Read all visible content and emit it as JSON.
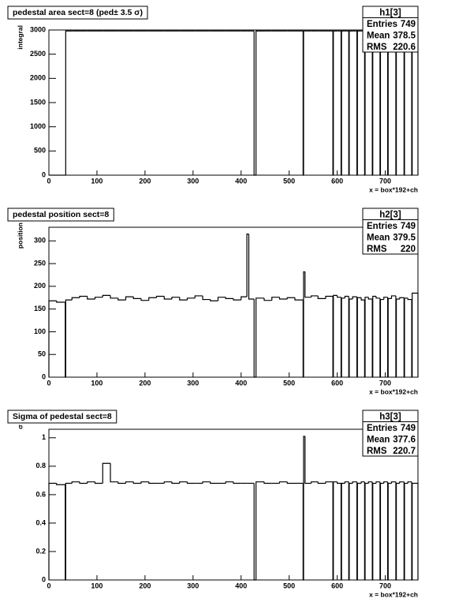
{
  "chart_data": [
    {
      "type": "histogram",
      "title": "pedestal area sect=8 (ped± 3.5 σ)",
      "xlabel": "x = box*192+ch",
      "ylabel": "integral",
      "color": "#000000",
      "stats": {
        "name": "h1[3]",
        "rows": [
          {
            "label": "Entries",
            "value": 749
          },
          {
            "label": "Mean",
            "value": 378.5
          },
          {
            "label": "RMS",
            "value": 220.6
          }
        ]
      },
      "bins": [
        0,
        16,
        34,
        35,
        48,
        64,
        80,
        96,
        112,
        128,
        144,
        160,
        176,
        192,
        208,
        224,
        240,
        256,
        272,
        288,
        304,
        320,
        336,
        352,
        368,
        384,
        400,
        412,
        416,
        427,
        431,
        448,
        464,
        480,
        496,
        512,
        529,
        530,
        533,
        546,
        560,
        576,
        591,
        592,
        600,
        608,
        609,
        616,
        624,
        625,
        632,
        641,
        642,
        650,
        657,
        658,
        665,
        673,
        674,
        681,
        689,
        690,
        697,
        705,
        706,
        713,
        722,
        723,
        730,
        739,
        740,
        747,
        755,
        756,
        768
      ],
      "values": [
        0,
        0,
        0,
        2980,
        2980,
        2980,
        2980,
        2980,
        2980,
        2980,
        2980,
        2980,
        2980,
        2980,
        2980,
        2980,
        2980,
        2980,
        2980,
        2980,
        2980,
        2980,
        2980,
        2980,
        2980,
        2980,
        2980,
        2980,
        2980,
        0,
        2980,
        2980,
        2980,
        2980,
        2980,
        2980,
        0,
        2980,
        2980,
        2980,
        2980,
        2980,
        0,
        2980,
        2980,
        0,
        2980,
        2980,
        0,
        2980,
        2980,
        0,
        2980,
        2980,
        0,
        2980,
        2980,
        0,
        2980,
        2980,
        0,
        2980,
        2980,
        0,
        2980,
        2980,
        0,
        2980,
        2980,
        0,
        2980,
        2980,
        0,
        2980
      ],
      "xlim": [
        0,
        768
      ],
      "ylim": [
        0,
        3000
      ],
      "xticks": [
        0,
        100,
        200,
        300,
        400,
        500,
        600,
        700
      ],
      "yticks": [
        0,
        500,
        1000,
        1500,
        2000,
        2500,
        3000
      ]
    },
    {
      "type": "histogram",
      "title": "pedestal position sect=8",
      "xlabel": "x = box*192+ch",
      "ylabel": "position",
      "color": "#000000",
      "stats": {
        "name": "h2[3]",
        "rows": [
          {
            "label": "Entries",
            "value": 749
          },
          {
            "label": "Mean",
            "value": 379.5
          },
          {
            "label": "RMS",
            "value": 220
          }
        ]
      },
      "bins": [
        0,
        16,
        34,
        35,
        48,
        64,
        80,
        96,
        112,
        128,
        144,
        160,
        176,
        192,
        208,
        224,
        240,
        256,
        272,
        288,
        304,
        320,
        336,
        352,
        368,
        384,
        400,
        412,
        416,
        427,
        431,
        448,
        464,
        480,
        496,
        512,
        529,
        530,
        533,
        546,
        560,
        576,
        591,
        592,
        600,
        608,
        609,
        616,
        624,
        625,
        632,
        641,
        642,
        650,
        657,
        658,
        665,
        673,
        674,
        681,
        689,
        690,
        697,
        705,
        706,
        713,
        722,
        723,
        730,
        739,
        740,
        747,
        755,
        756,
        768
      ],
      "values": [
        168,
        165,
        0,
        170,
        175,
        178,
        172,
        176,
        180,
        174,
        170,
        177,
        173,
        169,
        175,
        178,
        172,
        176,
        170,
        174,
        179,
        171,
        168,
        176,
        173,
        170,
        177,
        315,
        172,
        0,
        174,
        169,
        176,
        172,
        175,
        170,
        0,
        232,
        176,
        179,
        173,
        178,
        0,
        180,
        176,
        0,
        174,
        178,
        0,
        172,
        177,
        0,
        175,
        170,
        0,
        176,
        172,
        0,
        178,
        174,
        0,
        171,
        176,
        0,
        173,
        179,
        0,
        172,
        175,
        0,
        174,
        171,
        0,
        185
      ],
      "xlim": [
        0,
        768
      ],
      "ylim": [
        0,
        330
      ],
      "xticks": [
        0,
        100,
        200,
        300,
        400,
        500,
        600,
        700
      ],
      "yticks": [
        0,
        50,
        100,
        150,
        200,
        250,
        300
      ]
    },
    {
      "type": "histogram",
      "title": "Sigma of pedestal sect=8",
      "xlabel": "x = box*192+ch",
      "ylabel": "σ",
      "color": "#000000",
      "stats": {
        "name": "h3[3]",
        "rows": [
          {
            "label": "Entries",
            "value": 749
          },
          {
            "label": "Mean",
            "value": 377.6
          },
          {
            "label": "RMS",
            "value": 220.7
          }
        ]
      },
      "bins": [
        0,
        16,
        34,
        35,
        48,
        64,
        80,
        96,
        112,
        128,
        144,
        160,
        176,
        192,
        208,
        224,
        240,
        256,
        272,
        288,
        304,
        320,
        336,
        352,
        368,
        384,
        400,
        412,
        416,
        427,
        431,
        448,
        464,
        480,
        496,
        512,
        529,
        530,
        533,
        546,
        560,
        576,
        591,
        592,
        600,
        608,
        609,
        616,
        624,
        625,
        632,
        641,
        642,
        650,
        657,
        658,
        665,
        673,
        674,
        681,
        689,
        690,
        697,
        705,
        706,
        713,
        722,
        723,
        730,
        739,
        740,
        747,
        755,
        756,
        768
      ],
      "values": [
        0.68,
        0.67,
        0,
        0.68,
        0.69,
        0.68,
        0.69,
        0.68,
        0.82,
        0.69,
        0.68,
        0.69,
        0.68,
        0.69,
        0.68,
        0.68,
        0.69,
        0.68,
        0.69,
        0.68,
        0.68,
        0.69,
        0.68,
        0.68,
        0.69,
        0.68,
        0.68,
        0.68,
        0.68,
        0,
        0.69,
        0.68,
        0.68,
        0.69,
        0.68,
        0.68,
        0,
        1.01,
        0.68,
        0.69,
        0.68,
        0.69,
        0,
        0.69,
        0.68,
        0,
        0.68,
        0.69,
        0,
        0.68,
        0.69,
        0,
        0.68,
        0.69,
        0,
        0.68,
        0.69,
        0,
        0.68,
        0.69,
        0,
        0.68,
        0.69,
        0,
        0.68,
        0.69,
        0,
        0.68,
        0.69,
        0,
        0.68,
        0.69,
        0,
        0.68
      ],
      "xlim": [
        0,
        768
      ],
      "ylim": [
        0,
        1.06
      ],
      "xticks": [
        0,
        100,
        200,
        300,
        400,
        500,
        600,
        700
      ],
      "yticks": [
        0,
        0.2,
        0.4,
        0.6,
        0.8,
        1
      ]
    }
  ]
}
